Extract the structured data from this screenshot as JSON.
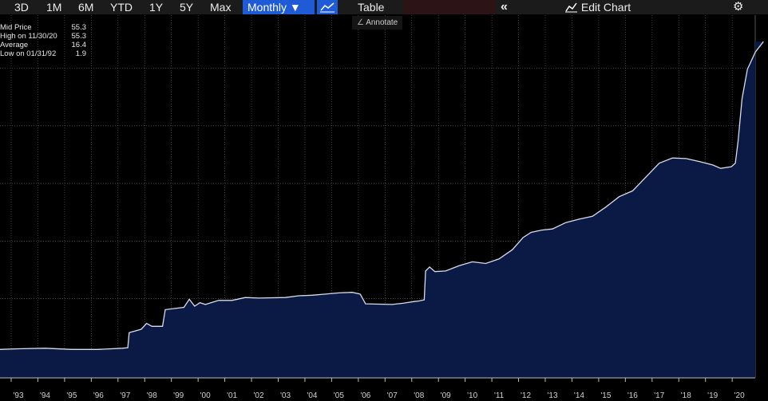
{
  "toolbar": {
    "ranges": [
      "3D",
      "1M",
      "6M",
      "YTD",
      "1Y",
      "5Y",
      "Max"
    ],
    "frequency": "Monthly ▼",
    "table_label": "Table",
    "collapse_glyph": "«",
    "edit_chart_label": "Edit Chart",
    "annotate_label": "Annotate"
  },
  "legend": [
    {
      "label": "Mid Price",
      "value": "55.3"
    },
    {
      "label": "High on 11/30/20",
      "value": "55.3"
    },
    {
      "label": "Average",
      "value": "16.4"
    },
    {
      "label": "Low on 01/31/92",
      "value": "1.9"
    }
  ],
  "colors": {
    "background": "#000000",
    "line": "#d8dde8",
    "area": "#0b1a45",
    "grid": "#6a6a6a",
    "accent": "#1f5bd6"
  },
  "icons": {
    "line_chart": "line-chart-icon",
    "edit_chart": "edit-chart-icon",
    "settings": "gear-icon",
    "annotate": "pencil-icon"
  },
  "chart_data": {
    "type": "area",
    "ylabel": "",
    "ylim": [
      0,
      60
    ],
    "grid": true,
    "legend_position": "top-left",
    "x_ticks": [
      "'93",
      "'94",
      "'95",
      "'96",
      "'97",
      "'98",
      "'99",
      "'00",
      "'01",
      "'02",
      "'03",
      "'04",
      "'05",
      "'06",
      "'07",
      "'08",
      "'09",
      "'10",
      "'11",
      "'12",
      "'13",
      "'14",
      "'15",
      "'16",
      "'17",
      "'18",
      "'19",
      "'20"
    ],
    "series": [
      {
        "points": [
          [
            1992.0,
            1.9
          ],
          [
            1993.0,
            2.0
          ],
          [
            1994.0,
            2.1
          ],
          [
            1995.0,
            1.9
          ],
          [
            1996.0,
            1.9
          ],
          [
            1996.9,
            2.1
          ],
          [
            1997.1,
            2.2
          ],
          [
            1997.15,
            4.8
          ],
          [
            1997.6,
            5.4
          ],
          [
            1997.8,
            6.4
          ],
          [
            1998.0,
            5.9
          ],
          [
            1998.4,
            5.9
          ],
          [
            1998.5,
            8.8
          ],
          [
            1999.2,
            9.2
          ],
          [
            1999.4,
            10.6
          ],
          [
            1999.6,
            9.4
          ],
          [
            1999.8,
            10.0
          ],
          [
            2000.0,
            9.7
          ],
          [
            2000.5,
            10.4
          ],
          [
            2001.0,
            10.4
          ],
          [
            2001.5,
            10.9
          ],
          [
            2002.0,
            10.8
          ],
          [
            2003.0,
            10.9
          ],
          [
            2003.5,
            11.2
          ],
          [
            2004.0,
            11.3
          ],
          [
            2004.5,
            11.5
          ],
          [
            2005.0,
            11.7
          ],
          [
            2005.5,
            11.8
          ],
          [
            2005.8,
            11.5
          ],
          [
            2006.0,
            9.8
          ],
          [
            2007.0,
            9.7
          ],
          [
            2007.4,
            9.9
          ],
          [
            2007.8,
            10.2
          ],
          [
            2008.0,
            10.3
          ],
          [
            2008.2,
            10.5
          ],
          [
            2008.25,
            15.5
          ],
          [
            2008.4,
            16.2
          ],
          [
            2008.6,
            15.4
          ],
          [
            2009.0,
            15.5
          ],
          [
            2009.5,
            16.4
          ],
          [
            2010.0,
            17.1
          ],
          [
            2010.5,
            16.8
          ],
          [
            2011.0,
            17.6
          ],
          [
            2011.5,
            19.2
          ],
          [
            2011.9,
            21.3
          ],
          [
            2012.2,
            22.2
          ],
          [
            2012.6,
            22.6
          ],
          [
            2013.0,
            22.8
          ],
          [
            2013.5,
            23.9
          ],
          [
            2014.0,
            24.5
          ],
          [
            2014.5,
            25.0
          ],
          [
            2015.0,
            26.6
          ],
          [
            2015.5,
            28.4
          ],
          [
            2016.0,
            29.4
          ],
          [
            2016.5,
            31.8
          ],
          [
            2017.0,
            34.2
          ],
          [
            2017.5,
            35.1
          ],
          [
            2018.0,
            35.0
          ],
          [
            2018.5,
            34.5
          ],
          [
            2019.0,
            33.9
          ],
          [
            2019.3,
            33.3
          ],
          [
            2019.7,
            33.6
          ],
          [
            2019.85,
            34.2
          ],
          [
            2019.95,
            38.0
          ],
          [
            2020.1,
            45.4
          ],
          [
            2020.3,
            50.5
          ],
          [
            2020.6,
            53.5
          ],
          [
            2020.9,
            55.3
          ]
        ]
      }
    ]
  }
}
